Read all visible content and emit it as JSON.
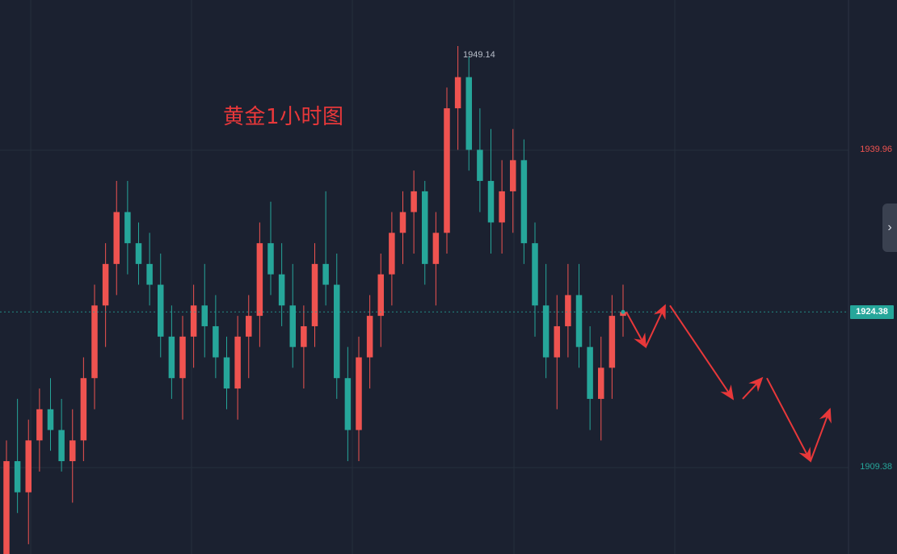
{
  "colors": {
    "background": "#1b2130",
    "grid": "#262e3c",
    "up": "#ef5350",
    "down": "#26a69a",
    "annotation": "#e8383a",
    "price_line": "#26a69a"
  },
  "annotation": {
    "title": "黄金1小时图"
  },
  "high_marker": {
    "label": "1949.14"
  },
  "current_price": {
    "label": "1924.38",
    "value": 1924.38
  },
  "collapse_button": {
    "icon": "chevron-right-icon",
    "glyph": "›"
  },
  "chart_data": {
    "type": "candlestick",
    "symbol": "黄金",
    "timeframe": "1小时",
    "y_axis": {
      "side": "right",
      "ticks": [
        {
          "label": "1909.38",
          "value": 1909.38,
          "color": "#26a69a"
        },
        {
          "label": "1939.96",
          "value": 1939.96,
          "color": "#ef5350"
        }
      ]
    },
    "grid": true,
    "ohlc": [
      [
        1900,
        1912,
        1898,
        1910
      ],
      [
        1910,
        1916,
        1905,
        1907
      ],
      [
        1907,
        1914,
        1902,
        1912
      ],
      [
        1912,
        1917,
        1909,
        1915
      ],
      [
        1915,
        1918,
        1911,
        1913
      ],
      [
        1913,
        1916,
        1909,
        1910
      ],
      [
        1910,
        1915,
        1906,
        1912
      ],
      [
        1912,
        1920,
        1910,
        1918
      ],
      [
        1918,
        1927,
        1915,
        1925
      ],
      [
        1925,
        1931,
        1921,
        1929
      ],
      [
        1929,
        1937,
        1926,
        1934
      ],
      [
        1934,
        1937,
        1928,
        1931
      ],
      [
        1931,
        1933,
        1927,
        1929
      ],
      [
        1929,
        1932,
        1925,
        1927
      ],
      [
        1927,
        1930,
        1920,
        1922
      ],
      [
        1922,
        1925,
        1916,
        1918
      ],
      [
        1918,
        1924,
        1914,
        1922
      ],
      [
        1922,
        1927,
        1919,
        1925
      ],
      [
        1925,
        1929,
        1920,
        1923
      ],
      [
        1923,
        1926,
        1918,
        1920
      ],
      [
        1920,
        1922,
        1915,
        1917
      ],
      [
        1917,
        1924,
        1914,
        1922
      ],
      [
        1922,
        1926,
        1918,
        1924
      ],
      [
        1924,
        1933,
        1921,
        1931
      ],
      [
        1931,
        1935,
        1926,
        1928
      ],
      [
        1928,
        1931,
        1923,
        1925
      ],
      [
        1925,
        1929,
        1919,
        1921
      ],
      [
        1921,
        1925,
        1917,
        1923
      ],
      [
        1923,
        1931,
        1921,
        1929
      ],
      [
        1929,
        1936,
        1925,
        1927
      ],
      [
        1927,
        1930,
        1916,
        1918
      ],
      [
        1918,
        1921,
        1910,
        1913
      ],
      [
        1913,
        1922,
        1910,
        1920
      ],
      [
        1920,
        1926,
        1917,
        1924
      ],
      [
        1924,
        1930,
        1921,
        1928
      ],
      [
        1928,
        1934,
        1925,
        1932
      ],
      [
        1932,
        1936,
        1929,
        1934
      ],
      [
        1934,
        1938,
        1930,
        1936
      ],
      [
        1936,
        1937,
        1927,
        1929
      ],
      [
        1929,
        1934,
        1925,
        1932
      ],
      [
        1932,
        1946,
        1930,
        1944
      ],
      [
        1944,
        1950,
        1940,
        1947
      ],
      [
        1947,
        1949,
        1938,
        1940
      ],
      [
        1940,
        1944,
        1934,
        1937
      ],
      [
        1937,
        1942,
        1930,
        1933
      ],
      [
        1933,
        1939,
        1930,
        1936
      ],
      [
        1936,
        1942,
        1932,
        1939
      ],
      [
        1939,
        1941,
        1929,
        1931
      ],
      [
        1931,
        1933,
        1922,
        1925
      ],
      [
        1925,
        1929,
        1918,
        1920
      ],
      [
        1920,
        1926,
        1915,
        1923
      ],
      [
        1923,
        1929,
        1920,
        1926
      ],
      [
        1926,
        1929,
        1919,
        1921
      ],
      [
        1921,
        1923,
        1913,
        1916
      ],
      [
        1916,
        1922,
        1912,
        1919
      ],
      [
        1919,
        1926,
        1916,
        1924
      ],
      [
        1924,
        1927,
        1922,
        1924.38
      ]
    ]
  },
  "forecast_arrows": [
    {
      "from": {
        "x": 0,
        "y": 1924.38
      },
      "to": {
        "x": 2,
        "y": 1921
      }
    },
    {
      "from": {
        "x": 2,
        "y": 1921
      },
      "to": {
        "x": 4,
        "y": 1925
      }
    },
    {
      "from": {
        "x": 4.5,
        "y": 1925
      },
      "to": {
        "x": 11,
        "y": 1916
      }
    },
    {
      "from": {
        "x": 12,
        "y": 1916
      },
      "to": {
        "x": 14,
        "y": 1918
      }
    },
    {
      "from": {
        "x": 14.5,
        "y": 1918
      },
      "to": {
        "x": 19,
        "y": 1910
      }
    },
    {
      "from": {
        "x": 19,
        "y": 1910
      },
      "to": {
        "x": 21,
        "y": 1915
      }
    }
  ]
}
